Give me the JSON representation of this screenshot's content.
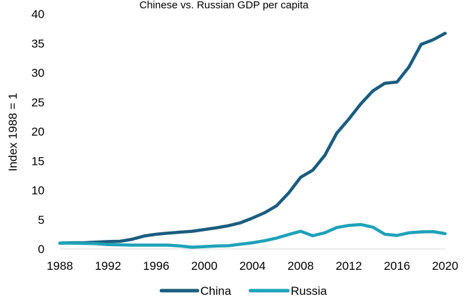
{
  "chart_data": {
    "type": "line",
    "title": "Chinese vs. Russian GDP per capita",
    "ylabel": "Index 1988 = 1",
    "xlabel": "",
    "ylim": [
      0,
      40
    ],
    "yticks": [
      0,
      5,
      10,
      15,
      20,
      25,
      30,
      35,
      40
    ],
    "xlim": [
      1988,
      2020
    ],
    "xticks": [
      1988,
      1992,
      1996,
      2000,
      2004,
      2008,
      2012,
      2016,
      2020
    ],
    "grid": false,
    "legend": "bottom",
    "x": [
      1988,
      1989,
      1990,
      1991,
      1992,
      1993,
      1994,
      1995,
      1996,
      1997,
      1998,
      1999,
      2000,
      2001,
      2002,
      2003,
      2004,
      2005,
      2006,
      2007,
      2008,
      2009,
      2010,
      2011,
      2012,
      2013,
      2014,
      2015,
      2016,
      2017,
      2018,
      2019,
      2020
    ],
    "series": [
      {
        "name": "China",
        "color": "#1b5c7e",
        "values": [
          1.0,
          1.05,
          1.05,
          1.15,
          1.25,
          1.3,
          1.65,
          2.2,
          2.5,
          2.7,
          2.85,
          3.0,
          3.3,
          3.6,
          3.95,
          4.45,
          5.25,
          6.15,
          7.35,
          9.5,
          12.2,
          13.4,
          15.9,
          19.7,
          22.1,
          24.7,
          26.9,
          28.2,
          28.4,
          31.0,
          34.8,
          35.6,
          36.7
        ]
      },
      {
        "name": "Russia",
        "color": "#1ea2b8",
        "values": [
          1.0,
          1.0,
          0.95,
          0.9,
          0.75,
          0.7,
          0.65,
          0.65,
          0.65,
          0.65,
          0.5,
          0.3,
          0.4,
          0.5,
          0.55,
          0.8,
          1.05,
          1.4,
          1.85,
          2.45,
          3.0,
          2.25,
          2.75,
          3.65,
          4.0,
          4.15,
          3.7,
          2.5,
          2.3,
          2.75,
          2.9,
          2.95,
          2.6
        ]
      }
    ]
  }
}
